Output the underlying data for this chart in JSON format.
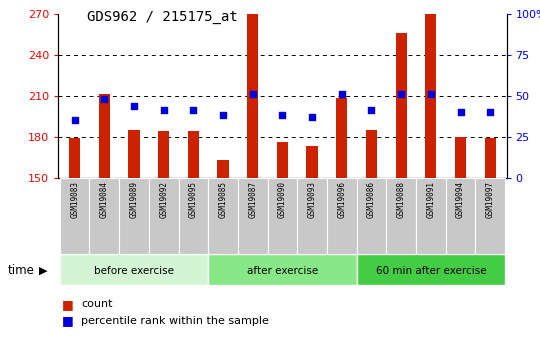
{
  "title": "GDS962 / 215175_at",
  "samples": [
    "GSM19083",
    "GSM19084",
    "GSM19089",
    "GSM19092",
    "GSM19095",
    "GSM19085",
    "GSM19087",
    "GSM19090",
    "GSM19093",
    "GSM19096",
    "GSM19086",
    "GSM19088",
    "GSM19091",
    "GSM19094",
    "GSM19097"
  ],
  "group_labels": [
    "before exercise",
    "after exercise",
    "60 min after exercise"
  ],
  "group_colors": [
    "#d4f5d4",
    "#88e888",
    "#44cc44"
  ],
  "count_values": [
    179,
    211,
    185,
    184,
    184,
    163,
    270,
    176,
    173,
    208,
    185,
    256,
    270,
    180,
    179
  ],
  "percentile_values": [
    35,
    48,
    44,
    41,
    41,
    38,
    51,
    38,
    37,
    51,
    41,
    51,
    51,
    40,
    40
  ],
  "y_min": 150,
  "y_max": 270,
  "y_ticks": [
    150,
    180,
    210,
    240,
    270
  ],
  "y2_ticks": [
    0,
    25,
    50,
    75,
    100
  ],
  "y2_tick_labels": [
    "0",
    "25",
    "50",
    "75",
    "100%"
  ],
  "bar_color": "#cc2200",
  "dot_color": "#0000dd",
  "bg_color": "#ffffff",
  "sample_bg": "#c8c8c8",
  "legend_items": [
    "count",
    "percentile rank within the sample"
  ]
}
